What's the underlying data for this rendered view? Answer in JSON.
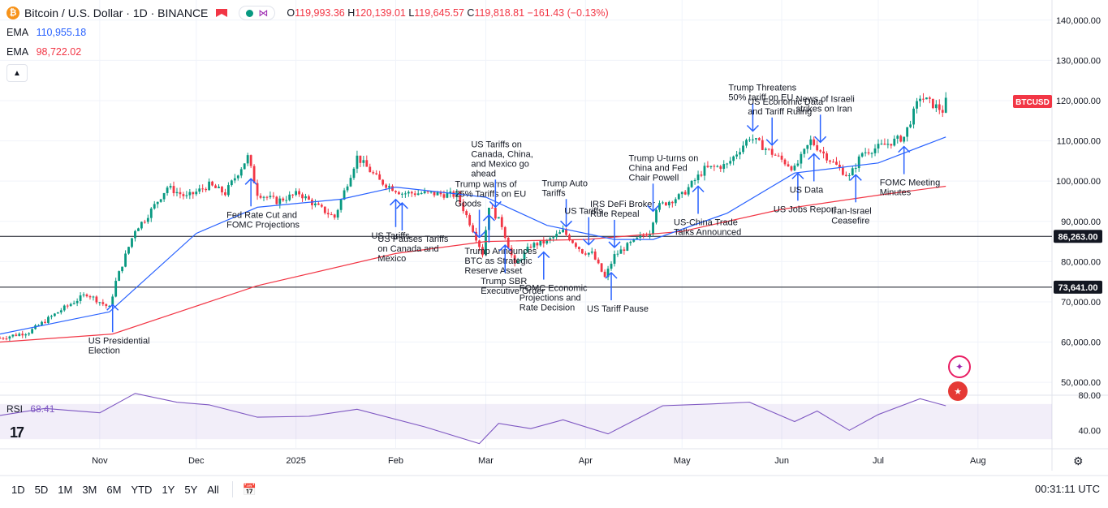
{
  "header": {
    "symbol_title": "Bitcoin / U.S. Dollar · 1D · BINANCE",
    "coin_glyph": "₿",
    "ohlc": {
      "o_label": "O",
      "o": "119,993.36",
      "h_label": "H",
      "h": "120,139.01",
      "l_label": "L",
      "l": "119,645.57",
      "c_label": "C",
      "c": "119,818.81",
      "change": "−161.43 (−0.13%)"
    }
  },
  "indicators": {
    "ema1": {
      "label": "EMA",
      "value": "110,955.18",
      "color": "#2962ff"
    },
    "ema2": {
      "label": "EMA",
      "value": "98,722.02",
      "color": "#f23645"
    },
    "rsi": {
      "label": "RSI",
      "value": "68.41",
      "color": "#7e57c2"
    }
  },
  "bottom_bar": {
    "ranges": [
      "1D",
      "5D",
      "1M",
      "3M",
      "6M",
      "YTD",
      "1Y",
      "5Y",
      "All"
    ],
    "time": "00:31:11 UTC"
  },
  "price_labels": {
    "symbol_tag": "BTCUSD",
    "line1": "86,263.00",
    "line2": "73,641.00"
  },
  "colors": {
    "up": "#089981",
    "down": "#f23645",
    "ema_short": "#2962ff",
    "ema_long": "#f23645",
    "annotation": "#2962ff"
  },
  "chart_data": {
    "type": "candlestick",
    "title": "Bitcoin / U.S. Dollar · 1D · BINANCE",
    "x_ticks": [
      "Nov",
      "Dec",
      "2025",
      "Feb",
      "Mar",
      "Apr",
      "May",
      "Jun",
      "Jul",
      "Aug"
    ],
    "y_ticks": [
      "140,000.00",
      "130,000.00",
      "120,000.00",
      "110,000.00",
      "100,000.00",
      "90,000.00",
      "80,000.00",
      "70,000.00",
      "60,000.00",
      "50,000.00"
    ],
    "y_range": [
      47000,
      145000
    ],
    "rsi_ticks": [
      "80.00",
      "40.00"
    ],
    "rsi_range": [
      20,
      80
    ],
    "horizontal_lines": [
      86263,
      73641
    ],
    "price_path": [
      [
        "2024-10-01",
        61000
      ],
      [
        "2024-10-10",
        62500
      ],
      [
        "2024-10-20",
        68000
      ],
      [
        "2024-10-28",
        72000
      ],
      [
        "2024-11-04",
        68500
      ],
      [
        "2024-11-06",
        75000
      ],
      [
        "2024-11-12",
        88000
      ],
      [
        "2024-11-15",
        90500
      ],
      [
        "2024-11-22",
        98500
      ],
      [
        "2024-11-28",
        96000
      ],
      [
        "2024-12-05",
        99000
      ],
      [
        "2024-12-10",
        97000
      ],
      [
        "2024-12-17",
        106000
      ],
      [
        "2024-12-20",
        97000
      ],
      [
        "2024-12-26",
        95000
      ],
      [
        "2025-01-02",
        97000
      ],
      [
        "2025-01-07",
        94000
      ],
      [
        "2025-01-13",
        91000
      ],
      [
        "2025-01-20",
        106000
      ],
      [
        "2025-01-27",
        100000
      ],
      [
        "2025-02-03",
        97000
      ],
      [
        "2025-02-10",
        97000
      ],
      [
        "2025-02-20",
        96500
      ],
      [
        "2025-02-25",
        88000
      ],
      [
        "2025-02-28",
        82000
      ],
      [
        "2025-03-02",
        94000
      ],
      [
        "2025-03-06",
        89000
      ],
      [
        "2025-03-10",
        79000
      ],
      [
        "2025-03-15",
        84000
      ],
      [
        "2025-03-20",
        85000
      ],
      [
        "2025-03-25",
        87500
      ],
      [
        "2025-03-31",
        82500
      ],
      [
        "2025-04-03",
        82000
      ],
      [
        "2025-04-07",
        76000
      ],
      [
        "2025-04-10",
        81500
      ],
      [
        "2025-04-15",
        84500
      ],
      [
        "2025-04-21",
        87500
      ],
      [
        "2025-04-23",
        93500
      ],
      [
        "2025-05-01",
        96500
      ],
      [
        "2025-05-08",
        103000
      ],
      [
        "2025-05-15",
        104000
      ],
      [
        "2025-05-22",
        111000
      ],
      [
        "2025-05-28",
        107500
      ],
      [
        "2025-06-05",
        103000
      ],
      [
        "2025-06-10",
        110000
      ],
      [
        "2025-06-17",
        104500
      ],
      [
        "2025-06-22",
        101000
      ],
      [
        "2025-06-26",
        107000
      ],
      [
        "2025-07-03",
        109000
      ],
      [
        "2025-07-09",
        111000
      ],
      [
        "2025-07-14",
        121000
      ],
      [
        "2025-07-21",
        117500
      ],
      [
        "2025-07-22",
        119800
      ]
    ],
    "ema_short_path": [
      [
        "2024-10-01",
        62000
      ],
      [
        "2024-11-04",
        67500
      ],
      [
        "2024-12-01",
        87000
      ],
      [
        "2024-12-20",
        93500
      ],
      [
        "2025-01-15",
        95500
      ],
      [
        "2025-02-01",
        98500
      ],
      [
        "2025-03-01",
        96000
      ],
      [
        "2025-03-20",
        89000
      ],
      [
        "2025-04-10",
        85500
      ],
      [
        "2025-04-22",
        85500
      ],
      [
        "2025-05-15",
        92000
      ],
      [
        "2025-06-05",
        102000
      ],
      [
        "2025-07-01",
        104500
      ],
      [
        "2025-07-22",
        110955
      ]
    ],
    "ema_long_path": [
      [
        "2024-10-01",
        60000
      ],
      [
        "2024-11-05",
        62000
      ],
      [
        "2024-12-20",
        74000
      ],
      [
        "2025-02-01",
        82000
      ],
      [
        "2025-03-01",
        85000
      ],
      [
        "2025-04-01",
        85500
      ],
      [
        "2025-05-01",
        87500
      ],
      [
        "2025-06-01",
        93000
      ],
      [
        "2025-07-01",
        96500
      ],
      [
        "2025-07-22",
        98722
      ]
    ],
    "rsi_path": [
      [
        "2024-10-01",
        57
      ],
      [
        "2024-10-15",
        65
      ],
      [
        "2024-11-01",
        60
      ],
      [
        "2024-11-12",
        82
      ],
      [
        "2024-11-25",
        72
      ],
      [
        "2024-12-05",
        69
      ],
      [
        "2024-12-20",
        55
      ],
      [
        "2025-01-05",
        56
      ],
      [
        "2025-01-20",
        64
      ],
      [
        "2025-02-10",
        44
      ],
      [
        "2025-02-27",
        25
      ],
      [
        "2025-03-05",
        48
      ],
      [
        "2025-03-15",
        42
      ],
      [
        "2025-03-25",
        52
      ],
      [
        "2025-04-08",
        36
      ],
      [
        "2025-04-25",
        68
      ],
      [
        "2025-05-10",
        70
      ],
      [
        "2025-05-22",
        72
      ],
      [
        "2025-06-05",
        50
      ],
      [
        "2025-06-12",
        62
      ],
      [
        "2025-06-22",
        40
      ],
      [
        "2025-07-01",
        58
      ],
      [
        "2025-07-14",
        76
      ],
      [
        "2025-07-22",
        68
      ]
    ],
    "annotations": [
      {
        "text": "US Presidential Election",
        "date": "2024-11-05",
        "dir": "up"
      },
      {
        "text": "Fed Rate Cut and FOMC Projections",
        "date": "2024-12-18",
        "dir": "up"
      },
      {
        "text": "US Tariffs",
        "date": "2025-02-01",
        "dir": "up"
      },
      {
        "text": "US Pauses Tariffs on Canada and Mexico",
        "date": "2025-02-03",
        "dir": "up"
      },
      {
        "text": "Trump warns of 25% Tariffs on EU Goods",
        "date": "2025-02-27",
        "dir": "down"
      },
      {
        "text": "US Tariffs on Canada, China, and Mexico go ahead",
        "date": "2025-03-04",
        "dir": "down"
      },
      {
        "text": "Trump Announces BTC as Strategic Reserve Asset",
        "date": "2025-03-02",
        "dir": "up"
      },
      {
        "text": "Trump SBR Executive Order",
        "date": "2025-03-07",
        "dir": "up"
      },
      {
        "text": "FOMC Economic Projections and Rate Decision",
        "date": "2025-03-19",
        "dir": "up"
      },
      {
        "text": "Trump Auto Tariffs",
        "date": "2025-03-26",
        "dir": "down"
      },
      {
        "text": "US Tariffs",
        "date": "2025-04-02",
        "dir": "down"
      },
      {
        "text": "IRS DeFi Broker Rule Repeal",
        "date": "2025-04-10",
        "dir": "down"
      },
      {
        "text": "US Tariff Pause",
        "date": "2025-04-09",
        "dir": "up"
      },
      {
        "text": "Trump U-turns on China and Fed Chair Powell",
        "date": "2025-04-22",
        "dir": "down"
      },
      {
        "text": "US-China Trade Talks Announced",
        "date": "2025-05-06",
        "dir": "up"
      },
      {
        "text": "Trump Threatens 50% tariff on EU",
        "date": "2025-05-23",
        "dir": "down"
      },
      {
        "text": "US Economic Data and Tariff Ruling",
        "date": "2025-05-29",
        "dir": "down"
      },
      {
        "text": "US Jobs Report",
        "date": "2025-06-06",
        "dir": "up"
      },
      {
        "text": "US Data",
        "date": "2025-06-11",
        "dir": "up"
      },
      {
        "text": "News of Israeli strikes on Iran",
        "date": "2025-06-13",
        "dir": "down"
      },
      {
        "text": "Iran-Israel Ceasefire",
        "date": "2025-06-24",
        "dir": "up"
      },
      {
        "text": "FOMC Meeting Minutes",
        "date": "2025-07-09",
        "dir": "up"
      }
    ]
  }
}
